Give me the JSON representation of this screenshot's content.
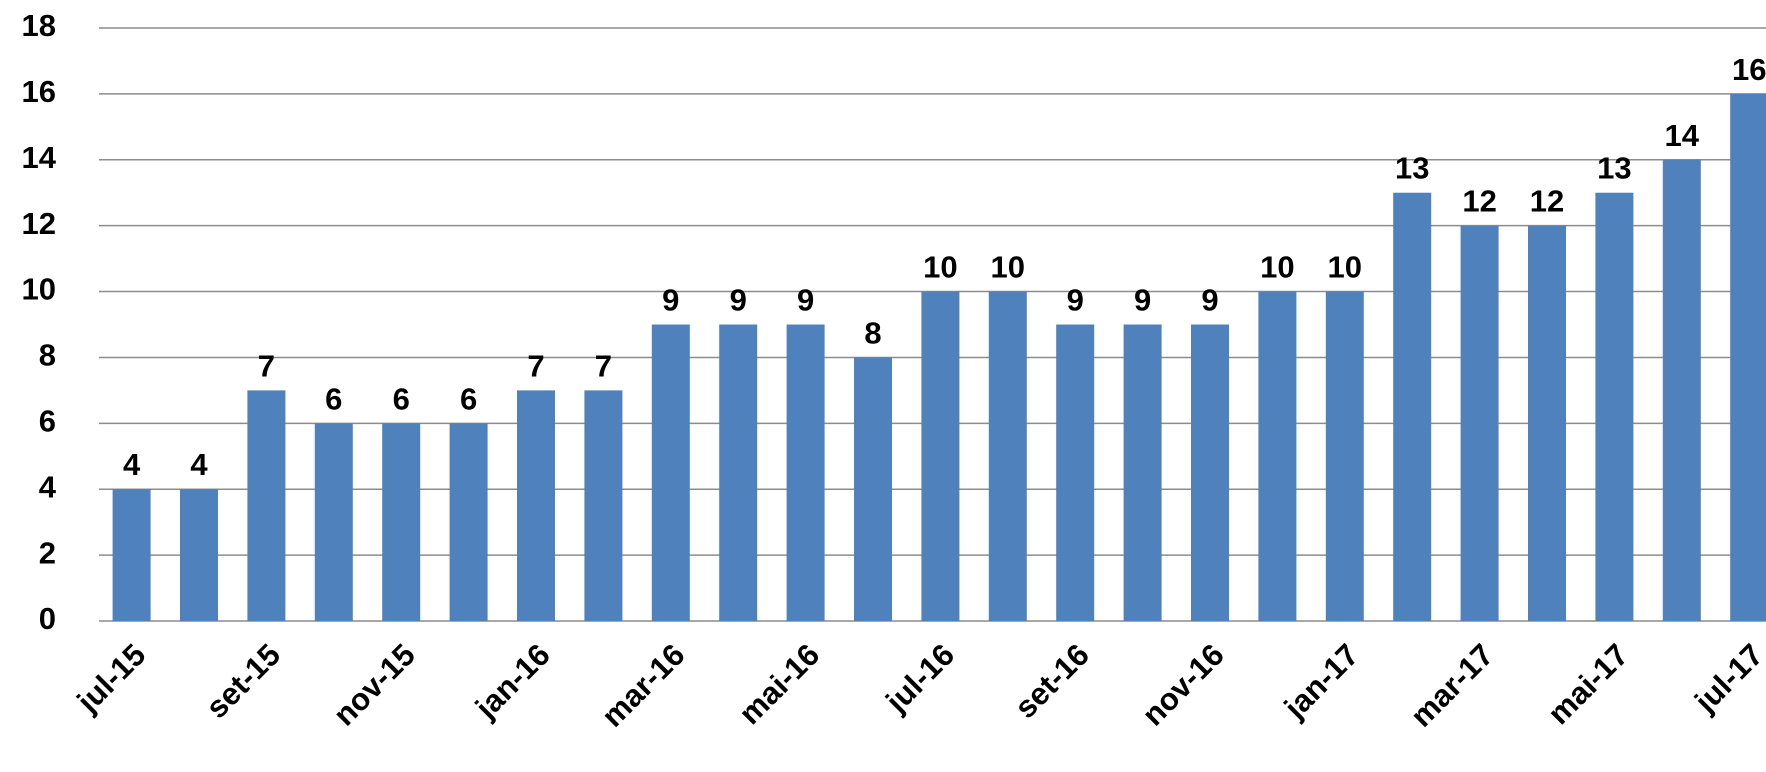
{
  "chart_data": {
    "type": "bar",
    "categories": [
      "jul-15",
      null,
      "set-15",
      null,
      "nov-15",
      null,
      "jan-16",
      null,
      "mar-16",
      null,
      "mai-16",
      null,
      "jul-16",
      null,
      "set-16",
      null,
      "nov-16",
      null,
      "jan-17",
      null,
      "mar-17",
      null,
      "mai-17",
      null,
      "jul-17"
    ],
    "values": [
      4,
      4,
      7,
      6,
      6,
      6,
      7,
      7,
      9,
      9,
      9,
      8,
      10,
      10,
      9,
      9,
      9,
      10,
      10,
      13,
      12,
      12,
      13,
      14,
      16
    ],
    "color": "#4f81bd",
    "ylim": [
      0,
      18
    ],
    "yticks": [
      0,
      2,
      4,
      6,
      8,
      10,
      12,
      14,
      16,
      18
    ],
    "grid": true
  }
}
